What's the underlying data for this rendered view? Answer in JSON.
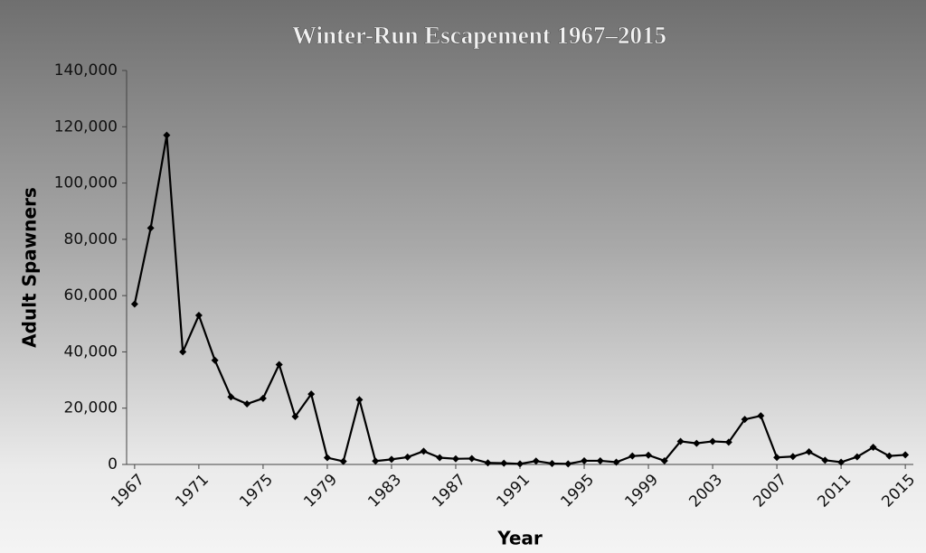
{
  "chart_data": {
    "type": "line",
    "title": "Winter-Run Escapement 1967–2015",
    "x_label": "Year",
    "y_label": "Adult Spawners",
    "x": [
      1967,
      1968,
      1969,
      1970,
      1971,
      1972,
      1973,
      1974,
      1975,
      1976,
      1977,
      1978,
      1979,
      1980,
      1981,
      1982,
      1983,
      1984,
      1985,
      1986,
      1987,
      1988,
      1989,
      1990,
      1991,
      1992,
      1993,
      1994,
      1995,
      1996,
      1997,
      1998,
      1999,
      2000,
      2001,
      2002,
      2003,
      2004,
      2005,
      2006,
      2007,
      2008,
      2009,
      2010,
      2011,
      2012,
      2013,
      2014,
      2015
    ],
    "values": [
      57000,
      84000,
      117000,
      40000,
      53000,
      37000,
      24000,
      21500,
      23500,
      35500,
      17000,
      25000,
      2400,
      1100,
      23000,
      1200,
      1800,
      2600,
      4700,
      2400,
      2000,
      2100,
      550,
      450,
      200,
      1200,
      340,
      200,
      1300,
      1300,
      800,
      3000,
      3300,
      1300,
      8200,
      7500,
      8200,
      7900,
      16000,
      17300,
      2500,
      2800,
      4500,
      1500,
      800,
      2700,
      6100,
      3000,
      3400
    ],
    "color": "#000000",
    "xlim": [
      1966.5,
      2015.5
    ],
    "xticks": [
      1967,
      1971,
      1975,
      1979,
      1983,
      1987,
      1991,
      1995,
      1999,
      2003,
      2007,
      2011,
      2015
    ],
    "ylim": [
      0,
      140000
    ],
    "yticks": [
      0,
      {
        "value": 20000,
        "label": "20,000"
      },
      {
        "value": 40000,
        "label": "40,000"
      },
      {
        "value": 60000,
        "label": "60,000"
      },
      {
        "value": 80000,
        "label": "80,000"
      },
      {
        "value": 100000,
        "label": "100,000"
      },
      {
        "value": 120000,
        "label": "120,000"
      },
      {
        "value": 140000,
        "label": "140,000"
      }
    ],
    "grid": false
  }
}
